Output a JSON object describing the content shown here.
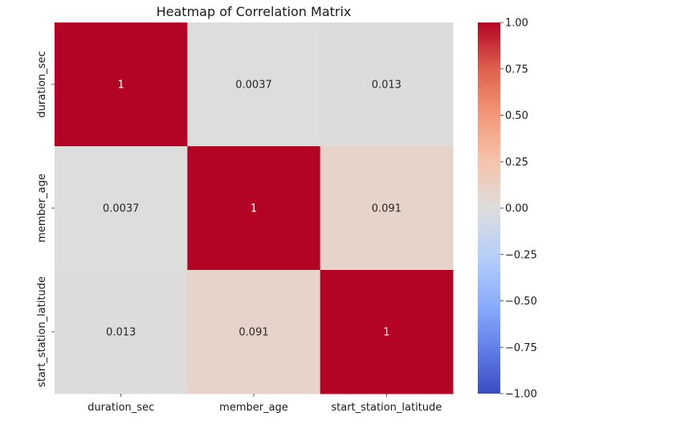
{
  "chart_data": {
    "type": "heatmap",
    "title": "Heatmap of Correlation Matrix",
    "xlabel": "",
    "ylabel": "",
    "x_categories": [
      "duration_sec",
      "member_age",
      "start_station_latitude"
    ],
    "y_categories": [
      "duration_sec",
      "member_age",
      "start_station_latitude"
    ],
    "values": [
      [
        1,
        0.0037,
        0.013
      ],
      [
        0.0037,
        1,
        0.091
      ],
      [
        0.013,
        0.091,
        1
      ]
    ],
    "annotations": [
      [
        "1",
        "0.0037",
        "0.013"
      ],
      [
        "0.0037",
        "1",
        "0.091"
      ],
      [
        "0.013",
        "0.091",
        "1"
      ]
    ],
    "colormap": "coolwarm",
    "colors": {
      "min": "#3b4cc0",
      "mid": "#dddddd",
      "max": "#b40426"
    },
    "vmin": -1.0,
    "vmax": 1.0,
    "colorbar_ticks": [
      "−1.00",
      "−0.75",
      "−0.50",
      "−0.25",
      "0.00",
      "0.25",
      "0.50",
      "0.75",
      "1.00"
    ],
    "colorbar_tick_values": [
      -1.0,
      -0.75,
      -0.5,
      -0.25,
      0.0,
      0.25,
      0.5,
      0.75,
      1.0
    ]
  }
}
